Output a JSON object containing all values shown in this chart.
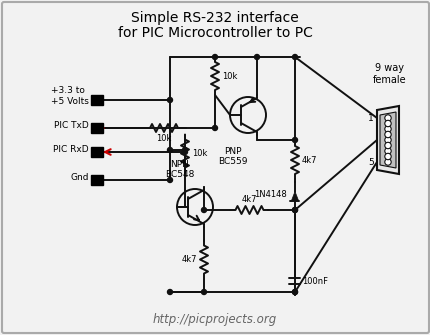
{
  "title_line1": "Simple RS-232 interface",
  "title_line2": "for PIC Microcontroller to PC",
  "website_correct": "http://picprojects.org",
  "bg_color": "#f2f2f2",
  "border_color": "#aaaaaa",
  "line_color": "#111111",
  "red_arrow_color": "#cc0000",
  "label_vcc": "+3.3 to\n+5 Volts",
  "label_txd": "PIC TxD",
  "label_rxd": "PIC RxD",
  "label_gnd": "Gnd",
  "label_pnp": "PNP\nBC559",
  "label_npn": "NPN\nBC548",
  "label_r1": "10k",
  "label_r2": "10k",
  "label_r3": "10k",
  "label_r4": "4k7",
  "label_r5": "4k7",
  "label_r6": "4k7",
  "label_diode": "1N4148",
  "label_cap": "100nF",
  "label_connector": "9 way\nfemale",
  "label_pin1": "1",
  "label_pin5": "5"
}
